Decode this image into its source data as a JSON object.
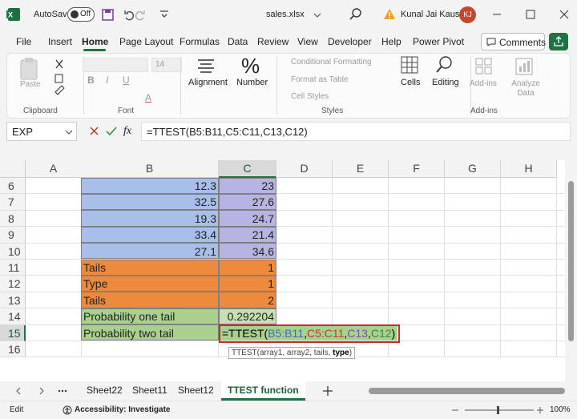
{
  "title_bar": {
    "autosave": "AutoSave",
    "toggle": "Off",
    "file_name": "sales.xlsx",
    "user_name": "Kunal Jai Kaushik",
    "user_initials": "KJ"
  },
  "menu": {
    "tabs": [
      "File",
      "Insert",
      "Home",
      "Page Layout",
      "Formulas",
      "Data",
      "Review",
      "View",
      "Developer",
      "Help",
      "Power Pivot"
    ],
    "comments": "Comments"
  },
  "ribbon": {
    "paste": "Paste",
    "clipboard": "Clipboard",
    "font_size": "14",
    "bold": "B",
    "italic": "I",
    "underline": "U",
    "font_color": "A",
    "font": "Font",
    "alignment": "Alignment",
    "number": "Number",
    "conditional_formatting": "Conditional Formatting",
    "format_as_table": "Format as Table",
    "cell_styles": "Cell Styles",
    "styles": "Styles",
    "cells": "Cells",
    "editing": "Editing",
    "add_ins_button": "Add-ins",
    "analyze_data": "Analyze Data",
    "add_ins": "Add-ins"
  },
  "formula_bar": {
    "name_box": "EXP",
    "fx": "fx",
    "formula": "=TTEST(B5:B11,C5:C11,C13,C12)"
  },
  "sheet": {
    "columns": [
      "A",
      "B",
      "C",
      "D",
      "E",
      "F",
      "G",
      "H"
    ],
    "rows": [
      {
        "header": 6,
        "cells": {
          "B": 12.3,
          "C": 23
        },
        "fill": {
          "B": "#a8bfe9",
          "C": "#b6b4e0"
        }
      },
      {
        "header": 7,
        "cells": {
          "B": 32.5,
          "C": 27.6
        },
        "fill": {
          "B": "#a8bfe9",
          "C": "#b6b4e0"
        }
      },
      {
        "header": 8,
        "cells": {
          "B": 19.3,
          "C": 24.7
        },
        "fill": {
          "B": "#a8bfe9",
          "C": "#b6b4e0"
        }
      },
      {
        "header": 9,
        "cells": {
          "B": 33.4,
          "C": 21.4
        },
        "fill": {
          "B": "#a8bfe9",
          "C": "#b6b4e0"
        }
      },
      {
        "header": 10,
        "cells": {
          "B": 27.1,
          "C": 34.6
        },
        "fill": {
          "B": "#a8bfe9",
          "C": "#b6b4e0"
        }
      },
      {
        "header": 11,
        "cells": {
          "B": "Tails",
          "C": 1
        },
        "fill": {
          "B": "#ee8a3d",
          "C": "#ee8a3d"
        }
      },
      {
        "header": 12,
        "cells": {
          "B": "Type",
          "C": 1
        },
        "fill": {
          "B": "#ee8a3d",
          "C": "#ee8a3d"
        }
      },
      {
        "header": 13,
        "cells": {
          "B": "Tails",
          "C": 2
        },
        "fill": {
          "B": "#ee8a3d",
          "C": "#ee8a3d"
        }
      },
      {
        "header": 14,
        "cells": {
          "B": "Probability one tail",
          "C": 0.292204
        },
        "fill": {
          "B": "#a9d08e",
          "C": "#c6e0b4"
        }
      },
      {
        "header": 15,
        "cells": {
          "B": "Probability two tail",
          "C": {
            "parts": [
              "=TTEST(",
              "B5:B11",
              ",",
              "C5:C11",
              ",",
              "C13",
              ",",
              "C12",
              ")"
            ],
            "part_colors": [
              "#000000",
              "#3a6cc0",
              "#000000",
              "#c0392b",
              "#000000",
              "#7d4fb0",
              "#000000",
              "#2f8a3c",
              "#000000"
            ]
          }
        },
        "fill": {
          "B": "#a9d08e",
          "C": "#a9d08e"
        }
      },
      {
        "header": 16,
        "cells": {},
        "fill": {}
      }
    ]
  },
  "tooltip": {
    "parts": [
      "TTEST(array1, array2, tails, ",
      "type",
      ")"
    ]
  },
  "sheet_tabs": {
    "tabs": [
      "Sheet22",
      "Sheet11",
      "Sheet12",
      "TTEST function"
    ]
  },
  "status_bar": {
    "mode": "Edit",
    "accessibility": "Accessibility: Investigate",
    "zoom": "100%"
  }
}
